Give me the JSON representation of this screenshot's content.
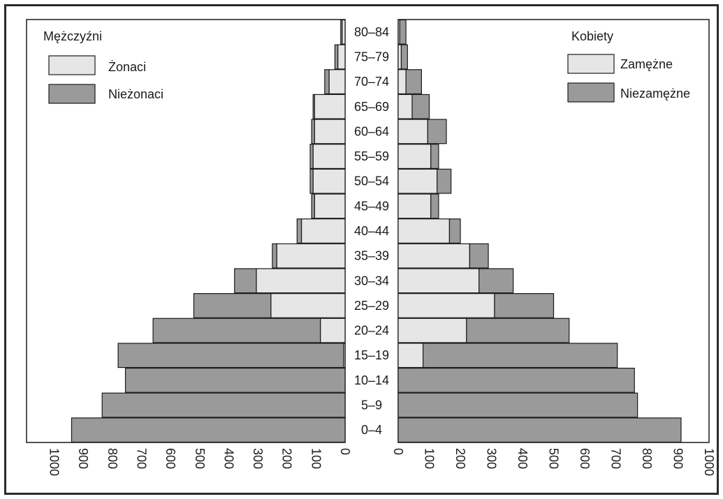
{
  "chart_data": {
    "type": "bar",
    "orientation": "horizontal-population-pyramid",
    "categories": [
      "0–4",
      "5–9",
      "10–14",
      "15–19",
      "20–24",
      "25–29",
      "30–34",
      "35–39",
      "40–44",
      "45–49",
      "50–54",
      "55–59",
      "60–64",
      "65–69",
      "70–74",
      "75–79",
      "80–84"
    ],
    "men": {
      "title": "Mężczyźni",
      "series": [
        {
          "name": "Żonaci",
          "values": [
            0,
            0,
            0,
            5,
            85,
            255,
            305,
            235,
            150,
            105,
            110,
            110,
            105,
            105,
            55,
            25,
            10
          ]
        },
        {
          "name": "Nieżonaci",
          "values": [
            940,
            835,
            755,
            775,
            575,
            265,
            75,
            15,
            15,
            10,
            10,
            10,
            10,
            5,
            15,
            10,
            5
          ]
        }
      ],
      "xlim": [
        1000,
        0
      ],
      "ticks": [
        1000,
        900,
        800,
        700,
        600,
        500,
        400,
        300,
        200,
        100,
        0
      ]
    },
    "women": {
      "title": "Kobiety",
      "series": [
        {
          "name": "Zamężne",
          "values": [
            0,
            0,
            0,
            80,
            220,
            310,
            260,
            230,
            165,
            105,
            125,
            105,
            95,
            45,
            25,
            10,
            5
          ]
        },
        {
          "name": "Niezamężne",
          "values": [
            910,
            770,
            760,
            625,
            330,
            190,
            110,
            60,
            35,
            25,
            45,
            25,
            60,
            55,
            50,
            20,
            20
          ]
        }
      ],
      "xlim": [
        0,
        1000
      ],
      "ticks": [
        0,
        100,
        200,
        300,
        400,
        500,
        600,
        700,
        800,
        900,
        1000
      ]
    },
    "colors": {
      "married": "#e6e6e6",
      "unmarried": "#9a9a9a",
      "outline": "#1a1a1a"
    },
    "grid": false
  }
}
